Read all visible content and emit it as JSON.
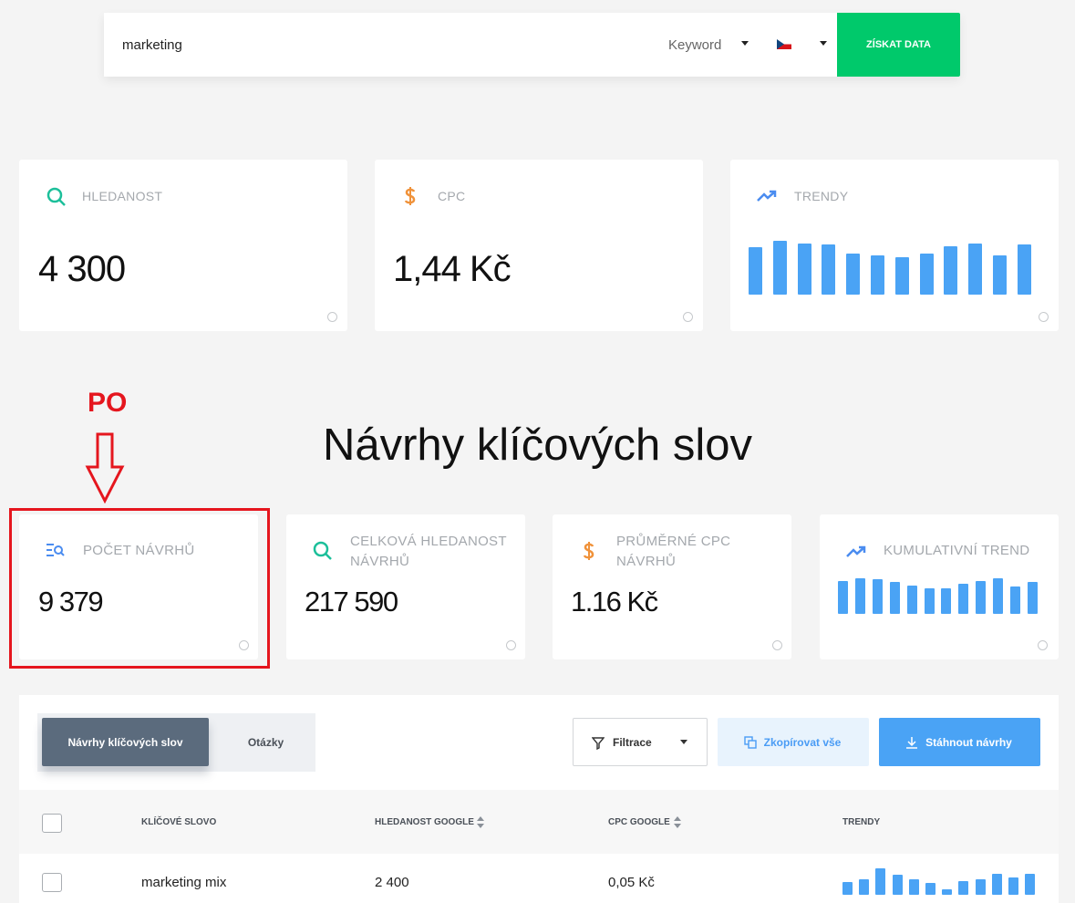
{
  "search": {
    "query": "marketing",
    "type": "Keyword",
    "button": "ZÍSKAT DATA"
  },
  "stats": [
    {
      "label": "HLEDANOST",
      "value": "4 300"
    },
    {
      "label": "CPC",
      "value": "1,44 Kč"
    },
    {
      "label": "TRENDY",
      "trend": [
        52,
        59,
        56,
        55,
        45,
        43,
        41,
        45,
        53,
        56,
        43,
        55
      ]
    }
  ],
  "annotation": "PO",
  "heading": "Návrhy klíčových slov",
  "suggestion_stats": [
    {
      "label": "POČET NÁVRHŮ",
      "value": "9 379"
    },
    {
      "label": "CELKOVÁ HLEDANOST NÁVRHŮ",
      "value": "217 590"
    },
    {
      "label": "PRŮMĚRNÉ CPC NÁVRHŮ",
      "value": "1.16 Kč"
    },
    {
      "label": "KUMULATIVNÍ TREND",
      "trend": [
        36,
        39,
        38,
        35,
        31,
        28,
        28,
        33,
        36,
        39,
        30,
        35
      ]
    }
  ],
  "tabs": [
    "Návrhy klíčových slov",
    "Otázky"
  ],
  "buttons": [
    "Filtrace",
    "Zkopírovat vše",
    "Stáhnout návrhy"
  ],
  "table": {
    "columns": [
      "KLÍČOVÉ SLOVO",
      "HLEDANOST GOOGLE",
      "CPC GOOGLE",
      "TRENDY"
    ],
    "rows": [
      [
        "marketing mix",
        "2 400",
        "0,05 Kč",
        [
          14,
          17,
          29,
          22,
          17,
          13,
          6,
          15,
          17,
          23,
          19,
          23
        ]
      ]
    ]
  }
}
